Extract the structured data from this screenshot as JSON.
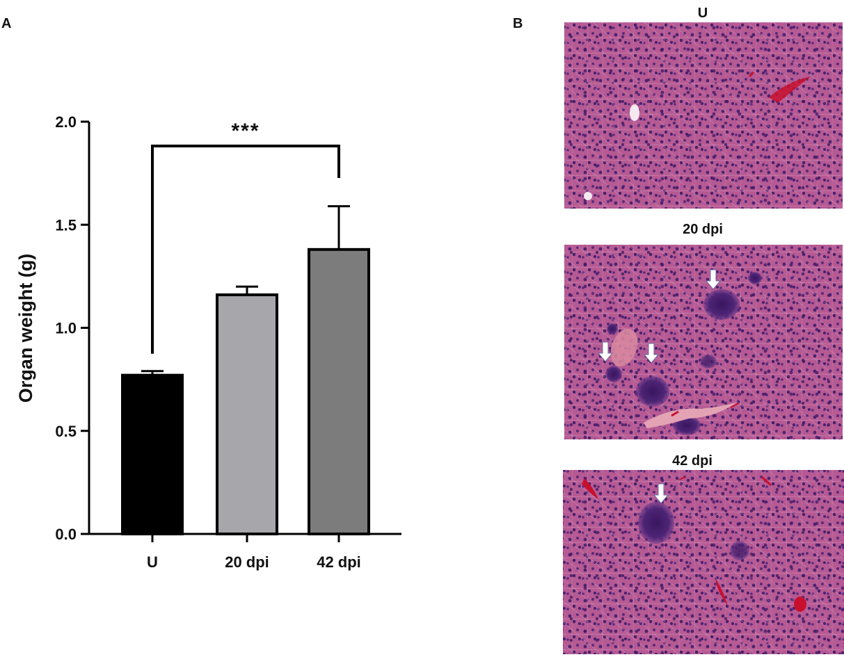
{
  "panels": {
    "a_label": "A",
    "b_label": "B"
  },
  "chart_data": {
    "type": "bar",
    "categories": [
      "U",
      "20 dpi",
      "42 dpi"
    ],
    "values": [
      0.77,
      1.16,
      1.38
    ],
    "errors": [
      0.02,
      0.04,
      0.21
    ],
    "bar_colors": [
      "#000000",
      "#a7a7ab",
      "#7c7c7c"
    ],
    "xlabel": "",
    "ylabel": "Organ weight (g)",
    "ylim": [
      0,
      2.0
    ],
    "yticks": [
      0.0,
      0.5,
      1.0,
      1.5,
      2.0
    ],
    "ytick_labels": [
      "0.0",
      "0.5",
      "1.0",
      "1.5",
      "2.0"
    ],
    "significance": {
      "from": "U",
      "to": "42 dpi",
      "label": "***"
    },
    "grid": false,
    "legend": "none"
  },
  "histology": [
    {
      "title": "U",
      "arrows": 0
    },
    {
      "title": "20 dpi",
      "arrows": 3
    },
    {
      "title": "42 dpi",
      "arrows": 1
    }
  ],
  "colors": {
    "tissue_base": "#b24a86",
    "cell_nucleus": "#4a1f6b",
    "vessel_red": "#c8102e",
    "arrow": "#ffffff"
  }
}
